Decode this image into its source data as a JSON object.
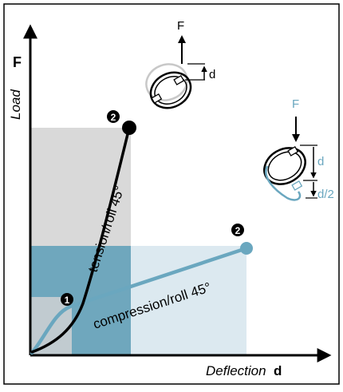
{
  "axes": {
    "y_label": "Load",
    "y_symbol": "F",
    "x_label": "Deflection",
    "x_symbol": "d"
  },
  "curves": {
    "tension": {
      "label": "tension/roll 45°",
      "end_marker": "2",
      "color": "#000000"
    },
    "compression": {
      "label": "compression/roll 45°",
      "end_marker": "2",
      "color": "#6aa7bf"
    },
    "start_marker": "1"
  },
  "top_inset": {
    "force_label": "F",
    "deflection_label": "d",
    "color": "#000000"
  },
  "side_inset": {
    "force_label": "F",
    "deflection_label": "d",
    "half_deflection_label": "d/2",
    "color": "#6aa7bf"
  },
  "colors": {
    "grey_region": "#d4d4d4",
    "blue_region": "#6aa7bf",
    "light_blue_region": "#dbe9f0",
    "frame": "#000000"
  }
}
